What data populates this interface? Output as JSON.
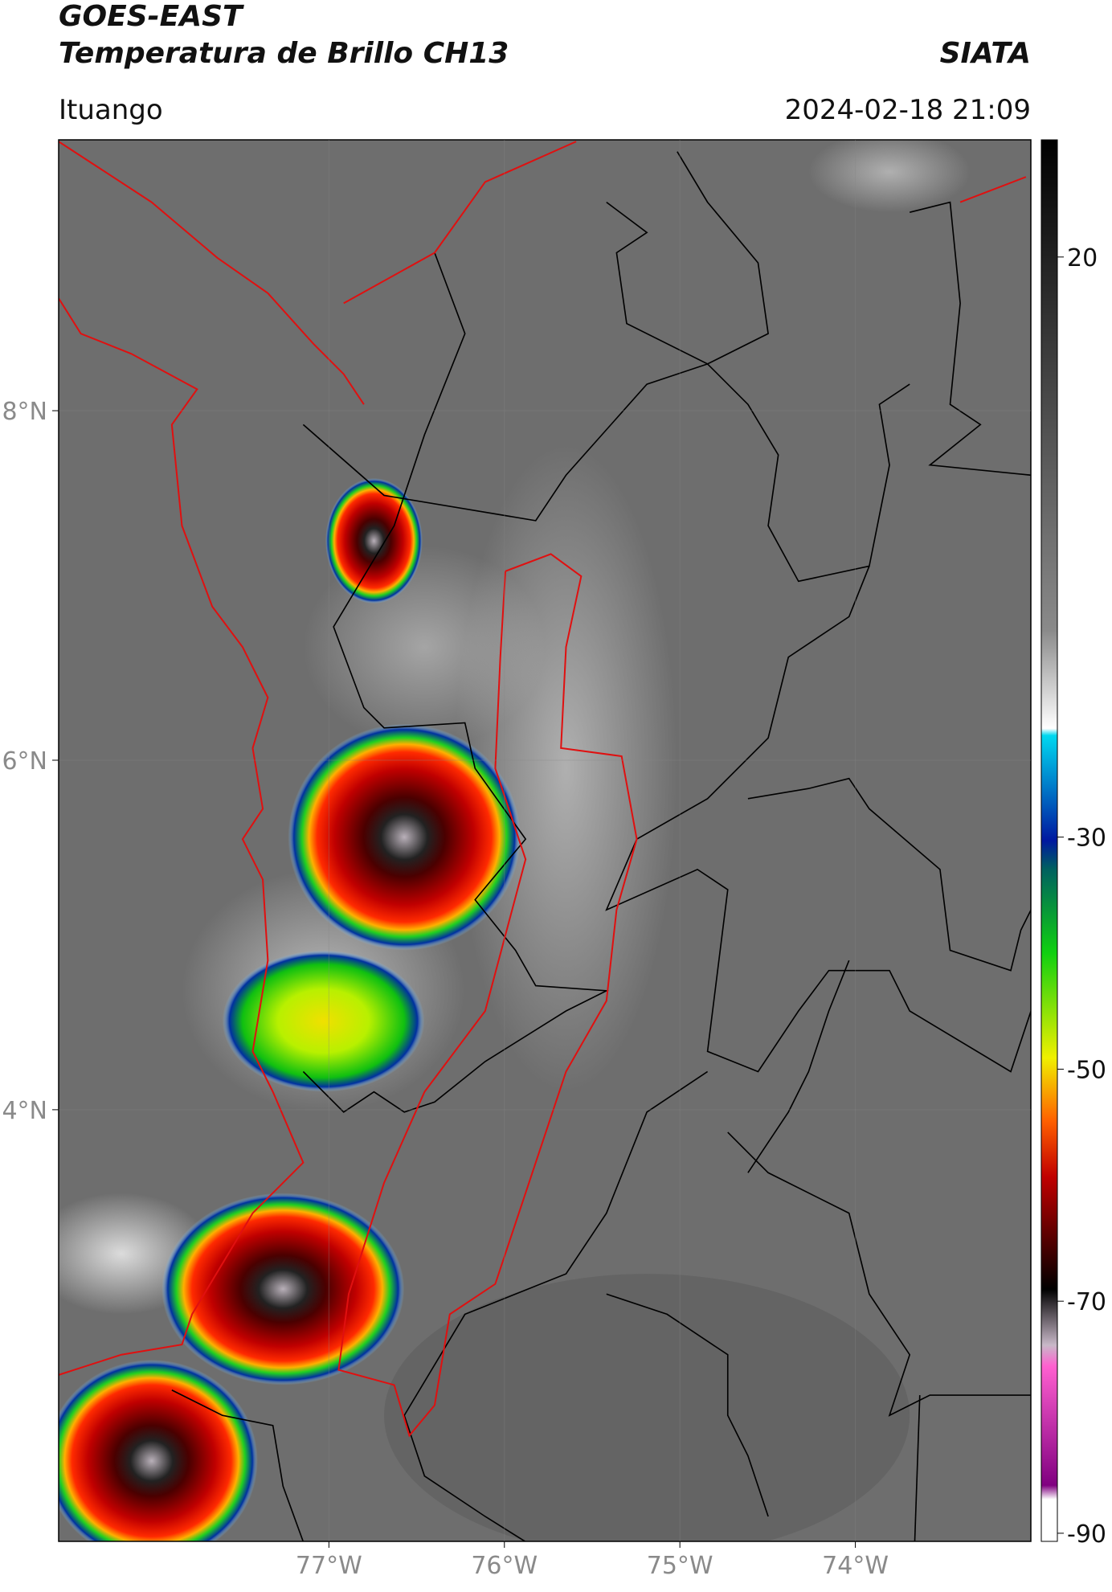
{
  "header": {
    "title": "GOES-EAST",
    "subtitle": "Temperatura de Brillo CH13",
    "source": "SIATA",
    "location": "Ituango",
    "datetime": "2024-02-18 21:09"
  },
  "map": {
    "xlim": [
      -78.54,
      -73.0
    ],
    "ylim": [
      1.53,
      9.55
    ],
    "xticks": [
      {
        "value": -77,
        "label": "77°W"
      },
      {
        "value": -76,
        "label": "76°W"
      },
      {
        "value": -75,
        "label": "75°W"
      },
      {
        "value": -74,
        "label": "74°W"
      }
    ],
    "yticks": [
      {
        "value": 8,
        "label": "8°N"
      },
      {
        "value": 6,
        "label": "6°N"
      },
      {
        "value": 4,
        "label": "4°N"
      }
    ]
  },
  "colorbar": {
    "lim": [
      -90.7,
      30.1
    ],
    "ticks": [
      20,
      -30,
      -50,
      -70,
      -90
    ]
  }
}
